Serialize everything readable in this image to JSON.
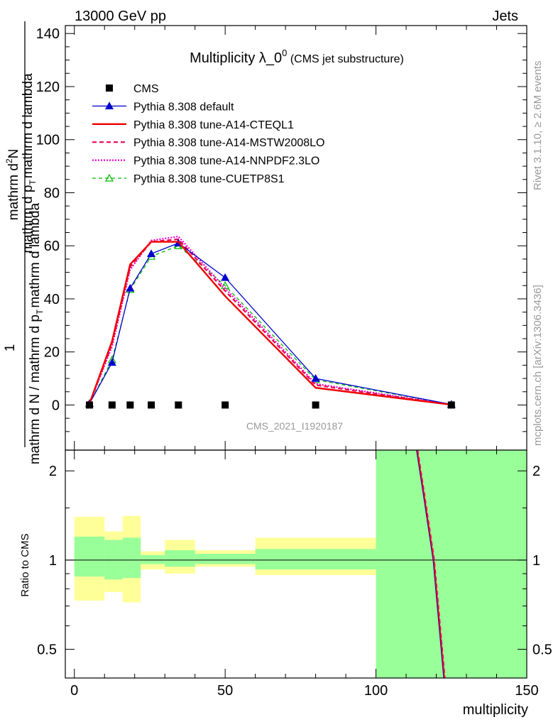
{
  "header": {
    "left": "13000 GeV pp",
    "right": "Jets"
  },
  "side_labels": {
    "rivet": "Rivet 3.1.10, ≥ 2.6M events",
    "mcplots": "mcplots.cern.ch [arXiv:1306.3436]"
  },
  "colors": {
    "cms": "#000000",
    "default": "#0000cc",
    "cteql1": "#ee0000",
    "mstw": "#ee0055",
    "nnpdf": "#ee00cc",
    "cuetp8s1": "#00bb00",
    "band_outer": "#ffff99",
    "band_inner": "#99ff99"
  },
  "chart_data": [
    {
      "type": "line",
      "title": {
        "main": "Multiplicity λ_0",
        "sup": "0",
        "sub": " (CMS jet substructure)"
      },
      "watermark": "CMS_2021_I1920187",
      "ylabel": {
        "numerator": "1",
        "denominator": "mathrm d N / mathrm d p",
        "denominator_sub": "T",
        "denominator_tail": "mathrm d lambda",
        "numerator2": "mathrm d",
        "numerator2_sup": "2",
        "numerator2_tail": "N",
        "fraction_part": "mathrm d p",
        "fraction_sub": "T",
        "fraction_tail": "mathrm d lambda"
      },
      "ylim": [
        -17,
        143
      ],
      "xlim": [
        -3,
        150
      ],
      "yticks": [
        0,
        20,
        40,
        60,
        80,
        100,
        120,
        140
      ],
      "ytick_labels": [
        "0",
        "20",
        "40",
        "60",
        "80",
        "100",
        "120",
        "140"
      ],
      "legend_position": "top-left",
      "series": [
        {
          "name": "CMS",
          "key": "cms",
          "style": "marker",
          "x": [
            5,
            12.5,
            18.5,
            25.5,
            34.5,
            50,
            80,
            125
          ],
          "y": [
            0,
            0,
            0,
            0,
            0,
            0,
            0,
            0
          ]
        },
        {
          "name": "Pythia 8.308 default",
          "key": "default",
          "style": "line-triangle",
          "x": [
            5,
            12.5,
            18.5,
            25.5,
            34.5,
            50,
            80,
            125
          ],
          "y": [
            0.5,
            16,
            44,
            57,
            61,
            48,
            10,
            0.2
          ]
        },
        {
          "name": "Pythia 8.308 tune-A14-CTEQL1",
          "key": "cteql1",
          "style": "line",
          "x": [
            5,
            12.5,
            18.5,
            25.5,
            34.5,
            50,
            80,
            125
          ],
          "y": [
            0.5,
            24,
            53,
            61.5,
            61.5,
            41,
            6.5,
            0.1
          ]
        },
        {
          "name": "Pythia 8.308 tune-A14-MSTW2008LO",
          "key": "mstw",
          "style": "dashed",
          "x": [
            5,
            12.5,
            18.5,
            25.5,
            34.5,
            50,
            80,
            125
          ],
          "y": [
            0.5,
            23,
            52,
            61.5,
            62.5,
            43,
            7.5,
            0.1
          ]
        },
        {
          "name": "Pythia 8.308 tune-A14-NNPDF2.3LO",
          "key": "nnpdf",
          "style": "dotted",
          "x": [
            5,
            12.5,
            18.5,
            25.5,
            34.5,
            50,
            80,
            125
          ],
          "y": [
            0.5,
            22,
            51,
            62,
            63.5,
            44,
            8,
            0.1
          ]
        },
        {
          "name": "Pythia 8.308 tune-CUETP8S1",
          "key": "cuetp8s1",
          "style": "dashed-triangle",
          "x": [
            5,
            12.5,
            18.5,
            25.5,
            34.5,
            50,
            80,
            125
          ],
          "y": [
            0.5,
            17,
            43.5,
            56,
            60,
            45,
            9.5,
            0.2
          ]
        }
      ]
    },
    {
      "type": "area",
      "ylabel": "Ratio to CMS",
      "xlabel": "multiplicity",
      "ylim": [
        0.4,
        2.35
      ],
      "xlim": [
        -3,
        150
      ],
      "yscale": "log",
      "yticks": [
        0.5,
        1,
        2
      ],
      "ytick_labels": [
        "0.5",
        "1",
        "2"
      ],
      "xticks": [
        0,
        50,
        100,
        150
      ],
      "xtick_labels": [
        "0",
        "50",
        "100",
        "150"
      ],
      "bins": [
        {
          "x0": 0,
          "x1": 10,
          "outer": [
            0.73,
            1.4
          ],
          "inner": [
            0.88,
            1.2
          ]
        },
        {
          "x0": 10,
          "x1": 16,
          "outer": [
            0.78,
            1.25
          ],
          "inner": [
            0.86,
            1.17
          ]
        },
        {
          "x0": 16,
          "x1": 22,
          "outer": [
            0.72,
            1.41
          ],
          "inner": [
            0.87,
            1.19
          ]
        },
        {
          "x0": 22,
          "x1": 30,
          "outer": [
            0.93,
            1.07
          ],
          "inner": [
            0.97,
            1.04
          ]
        },
        {
          "x0": 30,
          "x1": 40,
          "outer": [
            0.9,
            1.17
          ],
          "inner": [
            0.95,
            1.08
          ]
        },
        {
          "x0": 40,
          "x1": 60,
          "outer": [
            0.95,
            1.08
          ],
          "inner": [
            0.97,
            1.05
          ]
        },
        {
          "x0": 60,
          "x1": 100,
          "outer": [
            0.89,
            1.19
          ],
          "inner": [
            0.93,
            1.09
          ]
        },
        {
          "x0": 100,
          "x1": 150,
          "outer": [
            0.4,
            2.35
          ],
          "inner": [
            0.4,
            2.35
          ]
        }
      ],
      "ratio_curves": [
        {
          "key": "default",
          "x": [
            113.5,
            116,
            119,
            122.5
          ],
          "y": [
            2.35,
            1.6,
            1.0,
            0.4
          ]
        },
        {
          "key": "cteql1",
          "x": [
            113.5,
            116,
            119,
            122.5
          ],
          "y": [
            2.35,
            1.6,
            1.0,
            0.4
          ]
        },
        {
          "key": "mstw",
          "x": [
            113.5,
            116,
            119,
            122.5
          ],
          "y": [
            2.35,
            1.6,
            1.0,
            0.4
          ]
        }
      ]
    }
  ]
}
